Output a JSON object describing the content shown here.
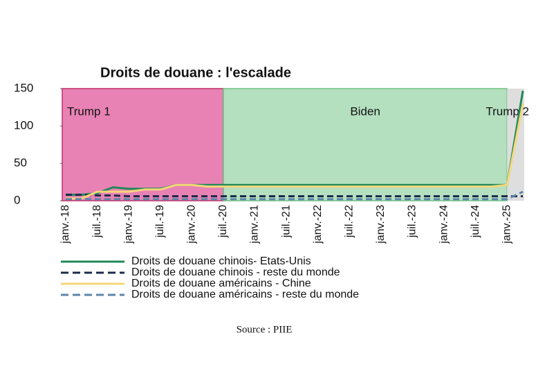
{
  "chart_data": {
    "type": "line",
    "title": "Droits de douane : l'escalade",
    "categories": [
      "janv.-18",
      null,
      "juil.-18",
      null,
      "janv.-19",
      null,
      "juil.-19",
      null,
      "janv.-20",
      null,
      "juil.-20",
      null,
      "janv.-21",
      null,
      "juil.-21",
      null,
      "janv.-22",
      null,
      "juil.-22",
      null,
      "janv.-23",
      null,
      "juil.-23",
      null,
      "janv.-24",
      null,
      "juil.-24",
      null,
      "janv.-25",
      null
    ],
    "ylim": [
      0,
      150
    ],
    "yticks": [
      0,
      50,
      100,
      150
    ],
    "periods": [
      {
        "label": "Trump 1",
        "start": "janv.-18",
        "end": "juil.-20",
        "color": "#e882b4"
      },
      {
        "label": "Biden",
        "start": "juil.-20",
        "end": "janv.-25",
        "color": "#b4e0bf"
      },
      {
        "label": "Trump 2",
        "start": "janv.-25",
        "color": "#dedede"
      }
    ],
    "series": [
      {
        "name": "Droits de douane chinois- Etats-Unis",
        "color": "#1f8a5a",
        "dash": false,
        "values": [
          8,
          8,
          10,
          18,
          16,
          16,
          16,
          21,
          21,
          21,
          21,
          21,
          21,
          21,
          21,
          21,
          21,
          21,
          21,
          21,
          21,
          21,
          21,
          21,
          21,
          21,
          21,
          21,
          21,
          147
        ]
      },
      {
        "name": "Droits de douane chinois - reste du monde",
        "color": "#1c2b4a",
        "dash": true,
        "values": [
          8,
          8,
          7,
          7,
          6,
          6,
          6,
          6,
          6,
          6,
          6,
          6,
          6,
          6,
          6,
          6,
          6,
          6,
          6,
          6,
          6,
          6,
          6,
          6,
          6,
          6,
          6,
          6,
          6,
          6
        ]
      },
      {
        "name": "Droits de douane américains - Chine",
        "color": "#f5d77a",
        "dash": false,
        "values": [
          3,
          3,
          12,
          12,
          12,
          15,
          15,
          21,
          21,
          19,
          19,
          19,
          19,
          19,
          19,
          19,
          19,
          19,
          19,
          19,
          19,
          19,
          19,
          19,
          19,
          19,
          19,
          19,
          21,
          130
        ]
      },
      {
        "name": "Droits de douane américains - reste du monde",
        "color": "#5d86a8",
        "dash": true,
        "values": [
          2,
          2,
          2,
          2,
          2,
          2,
          2,
          2,
          2,
          2,
          2,
          2,
          2,
          2,
          2,
          2,
          2,
          2,
          2,
          2,
          2,
          2,
          2,
          2,
          2,
          2,
          2,
          2,
          2,
          12
        ]
      }
    ],
    "source": "Source : PIIE"
  }
}
